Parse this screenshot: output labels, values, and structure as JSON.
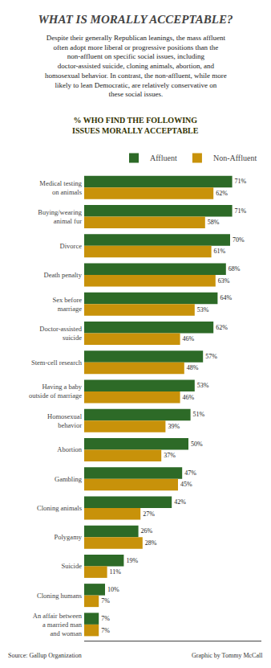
{
  "chart_data": {
    "type": "bar",
    "orientation": "horizontal",
    "title": "WHAT IS MORALLY ACCEPTABLE?",
    "subtitle": "Despite their generally Republican leanings, the mass affluent often adopt more liberal or progressive positions than the non-affluent on specific social issues, including doctor-assisted suicide, cloning animals, abortion, and homosexual behavior. In contrast, the non-affluent, while more likely to lean Democratic, are relatively conservative on these social issues.",
    "annotations": [
      "% WHO FIND THE FOLLOWING\nISSUES MORALLY ACCEPTABLE",
      "Source: Gallup Organization",
      "Graphic by Tommy McCall"
    ],
    "categories": [
      "Medical testing\non animals",
      "Buying/wearing\nanimal fur",
      "Divorce",
      "Death penalty",
      "Sex before\nmarriage",
      "Doctor-assisted\nsuicide",
      "Stem-cell research",
      "Having a baby\noutside of marriage",
      "Homosexual\nbehavior",
      "Abortion",
      "Gambling",
      "Cloning animals",
      "Polygamy",
      "Suicide",
      "Cloning humans",
      "An affair between\na married man\nand woman"
    ],
    "series": [
      {
        "name": "Affluent",
        "color": "#2d6a27",
        "values": [
          71,
          71,
          70,
          68,
          64,
          62,
          57,
          53,
          51,
          50,
          47,
          42,
          26,
          19,
          10,
          7
        ],
        "value_labels": [
          "71%",
          "71%",
          "70%",
          "68%",
          "64%",
          "62%",
          "57%",
          "53%",
          "51%",
          "50%",
          "47%",
          "42%",
          "26%",
          "19%",
          "10%",
          "7%"
        ]
      },
      {
        "name": "Non-Affluent",
        "color": "#c8920a",
        "values": [
          62,
          58,
          61,
          63,
          53,
          46,
          48,
          46,
          39,
          37,
          45,
          27,
          28,
          11,
          7,
          7
        ],
        "value_labels": [
          "62%",
          "58%",
          "61%",
          "63%",
          "53%",
          "46%",
          "48%",
          "46%",
          "39%",
          "37%",
          "45%",
          "27%",
          "28%",
          "11%",
          "7%",
          "7%"
        ]
      }
    ],
    "xlim": [
      0,
      85
    ],
    "data_labels": true,
    "tick_labels": "y",
    "grid": false,
    "legend": "upper right"
  }
}
